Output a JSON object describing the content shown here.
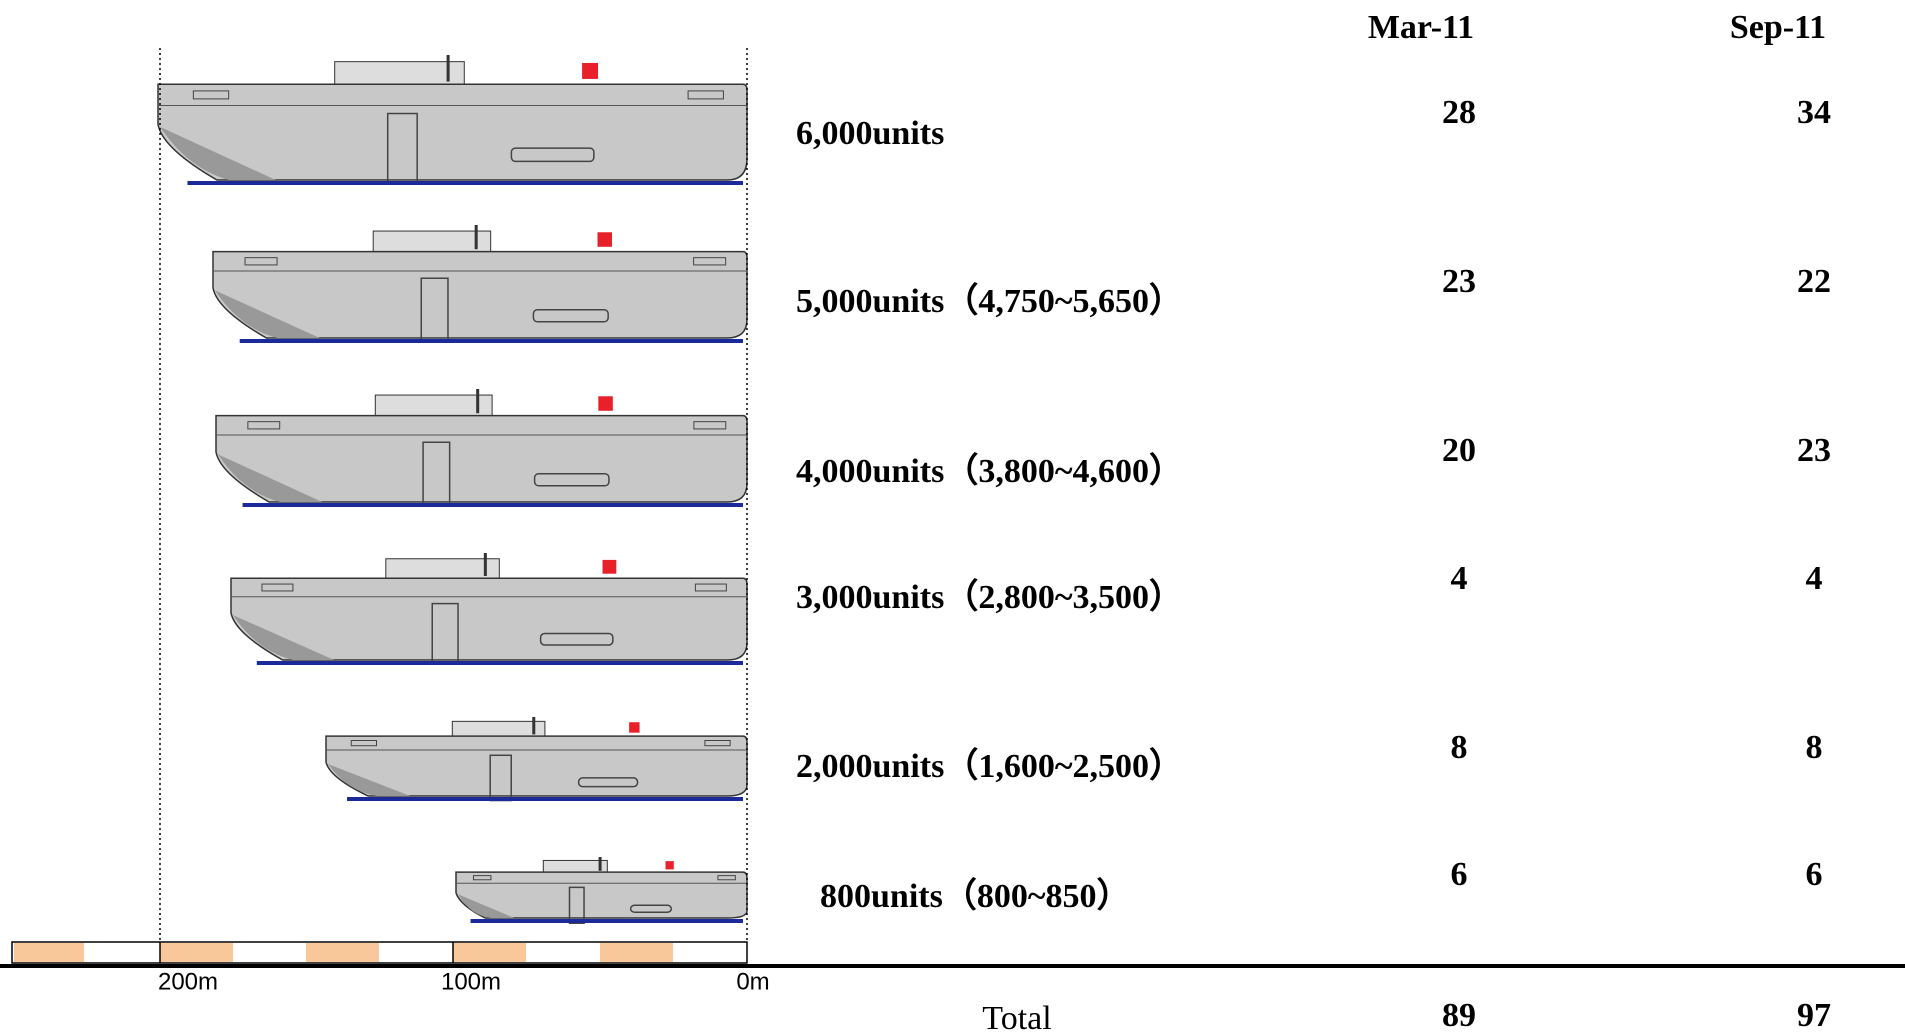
{
  "table": {
    "headers": [
      "Mar-11",
      "Sep-11"
    ],
    "rows": [
      [
        "6,000units",
        "28",
        "34"
      ],
      [
        "5,000units（4,750~5,650）",
        "23",
        "22"
      ],
      [
        "4,000units（3,800~4,600）",
        "20",
        "23"
      ],
      [
        "3,000units（2,800~3,500）",
        "4",
        "4"
      ],
      [
        "2,000units（1,600~2,500）",
        "8",
        "8"
      ],
      [
        "800units（800~850）",
        "6",
        "6"
      ]
    ],
    "total": [
      "Total",
      "89",
      "97"
    ]
  },
  "scale": {
    "labels": [
      "200m",
      "100m",
      "0m"
    ]
  }
}
